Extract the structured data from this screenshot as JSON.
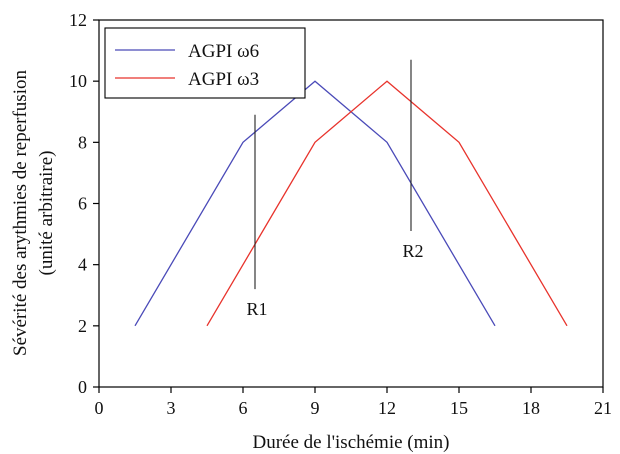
{
  "chart_data": {
    "type": "line",
    "title": "",
    "xlabel": "Durée de l'ischémie (min)",
    "ylabel_lines": [
      "Sévérité des arythmies de reperfusion",
      "(unité arbitraire)"
    ],
    "xlim": [
      0,
      21
    ],
    "ylim": [
      0,
      12
    ],
    "xticks": [
      0,
      3,
      6,
      9,
      12,
      15,
      18,
      21
    ],
    "yticks": [
      0,
      2,
      4,
      6,
      8,
      10,
      12
    ],
    "grid": false,
    "legend_position": "top-left",
    "series": [
      {
        "name": "AGPI ω6",
        "color": "#4a4ab8",
        "points": [
          [
            1.5,
            2
          ],
          [
            6,
            8
          ],
          [
            9,
            10
          ],
          [
            12,
            8
          ],
          [
            16.5,
            2
          ]
        ]
      },
      {
        "name": "AGPI ω3",
        "color": "#e8332c",
        "points": [
          [
            4.5,
            2
          ],
          [
            9,
            8
          ],
          [
            12,
            10
          ],
          [
            15,
            8
          ],
          [
            19.5,
            2
          ]
        ]
      }
    ],
    "annotations": [
      {
        "label": "R1",
        "x": 6.5,
        "y_range": [
          3.2,
          8.9
        ]
      },
      {
        "label": "R2",
        "x": 13,
        "y_range": [
          5.1,
          10.7
        ]
      }
    ]
  }
}
